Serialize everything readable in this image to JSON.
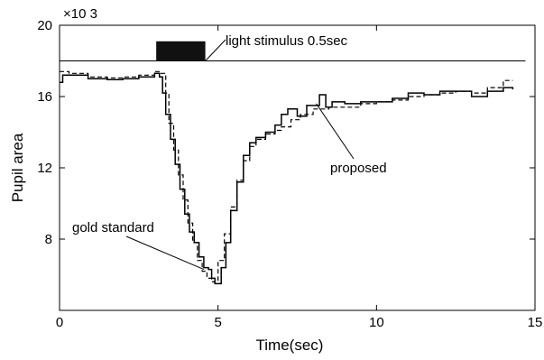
{
  "chart_data": {
    "type": "line",
    "xlabel": "Time(sec)",
    "ylabel": "Pupil area",
    "y_multiplier_label": "×10 3",
    "xlim": [
      0,
      15
    ],
    "ylim": [
      4000,
      20000
    ],
    "x_ticks": [
      0,
      5,
      10,
      15
    ],
    "x_tick_labels": [
      "0",
      "5",
      "10",
      "15"
    ],
    "y_ticks": [
      8000,
      12000,
      16000,
      20000
    ],
    "y_tick_labels": [
      "8",
      "12",
      "16",
      "20"
    ],
    "grid": false,
    "legend": "none",
    "stimulus": {
      "label": "light stimulus 0.5sec",
      "baseline": 18000,
      "start": 3.05,
      "end": 4.6,
      "top": 19100
    },
    "annotations": [
      {
        "text": "gold standard",
        "series": 0,
        "point_x": 4.55,
        "point_y": 6300
      },
      {
        "text": "proposed",
        "series": 1,
        "point_x": 8.1,
        "point_y": 15600
      }
    ],
    "series": [
      {
        "style": "dashed",
        "x": [
          0.0,
          0.3,
          0.9,
          1.5,
          2.0,
          2.5,
          3.0,
          3.2,
          3.35,
          3.45,
          3.6,
          3.75,
          3.9,
          4.05,
          4.2,
          4.35,
          4.5,
          4.65,
          4.8,
          4.9,
          5.0,
          5.2,
          5.4,
          5.6,
          5.8,
          6.0,
          6.2,
          6.5,
          6.8,
          7.0,
          7.3,
          7.6,
          8.0,
          8.5,
          9.0,
          9.5,
          10.0,
          10.5,
          11.0,
          11.5,
          12.0,
          12.5,
          13.0,
          13.5,
          14.0,
          14.3
        ],
        "y": [
          17400,
          17300,
          17100,
          17050,
          17100,
          17200,
          17400,
          17300,
          16200,
          14500,
          13000,
          11600,
          10200,
          8900,
          7800,
          6800,
          6200,
          5800,
          5600,
          5700,
          6800,
          8300,
          9800,
          11300,
          12400,
          13200,
          13600,
          13900,
          14100,
          14300,
          14700,
          15000,
          15300,
          15400,
          15400,
          15600,
          15700,
          15800,
          16000,
          16100,
          16200,
          16300,
          16200,
          16500,
          16900,
          16900
        ]
      },
      {
        "style": "solid",
        "x": [
          0.0,
          0.1,
          0.3,
          0.9,
          1.5,
          2.0,
          2.5,
          3.0,
          3.15,
          3.25,
          3.35,
          3.5,
          3.65,
          3.8,
          3.95,
          4.1,
          4.25,
          4.4,
          4.55,
          4.7,
          4.8,
          4.9,
          5.0,
          5.1,
          5.25,
          5.4,
          5.6,
          5.8,
          6.0,
          6.2,
          6.5,
          6.8,
          7.0,
          7.2,
          7.5,
          7.8,
          8.0,
          8.2,
          8.4,
          8.6,
          9.0,
          9.5,
          10.0,
          10.5,
          11.0,
          11.5,
          12.0,
          12.5,
          13.0,
          13.5,
          14.0,
          14.3
        ],
        "y": [
          16800,
          17200,
          17200,
          17000,
          16950,
          17000,
          17100,
          17300,
          17100,
          16200,
          15000,
          13600,
          12200,
          10800,
          9400,
          8400,
          7800,
          7000,
          6400,
          6300,
          5800,
          5500,
          5500,
          6400,
          7800,
          9600,
          11200,
          12700,
          13400,
          13700,
          14000,
          14400,
          15000,
          15300,
          14900,
          15500,
          15500,
          16100,
          15400,
          15700,
          15600,
          15700,
          15700,
          15900,
          16200,
          16100,
          16300,
          16300,
          16000,
          16300,
          16500,
          16400
        ]
      }
    ]
  }
}
